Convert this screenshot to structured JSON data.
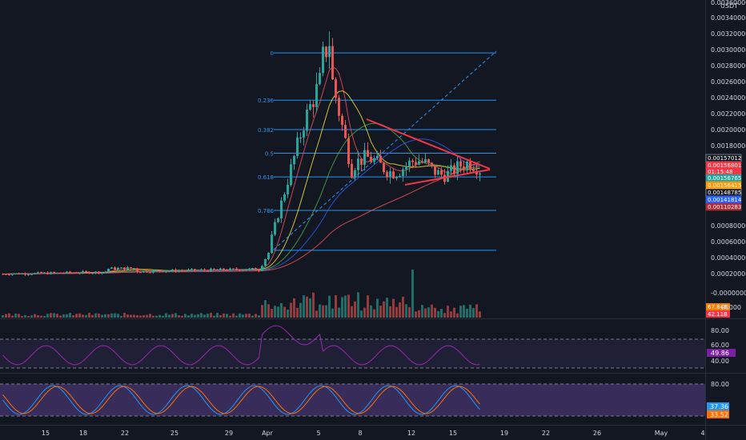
{
  "chart_data": [
    {
      "type": "candlestick",
      "currency_label": "USDT",
      "y_ticks": [
        "0.00360000",
        "0.00340000",
        "0.00320000",
        "0.00300000",
        "0.00280000",
        "0.00260000",
        "0.00240000",
        "0.00220000",
        "0.00200000",
        "0.00180000",
        "0.00080000",
        "0.00060000",
        "0.00040000",
        "0.00020000",
        "-0.00000000"
      ],
      "x_ticks": [
        "15",
        "18",
        "22",
        "25",
        "29",
        "Apr",
        "5",
        "8",
        "12",
        "15",
        "19",
        "22",
        "26",
        "May",
        "4"
      ],
      "fib_levels": [
        {
          "label": "0",
          "price": 0.00296
        },
        {
          "label": "0.236",
          "price": 0.00238
        },
        {
          "label": "0.382",
          "price": 0.00202
        },
        {
          "label": "0.5",
          "price": 0.00173
        },
        {
          "label": "0.618",
          "price": 0.00144
        },
        {
          "label": "0.786",
          "price": 0.00103
        },
        {
          "label": "",
          "price": 0.00054
        }
      ],
      "price_badges": [
        {
          "text": "0.00157012",
          "color": "#ffffff",
          "bg": "#131722"
        },
        {
          "text": "0.00156801",
          "color": "#ffffff",
          "bg": "#f23645"
        },
        {
          "text": "01:15:48",
          "color": "#ffffff",
          "bg": "#f23645"
        },
        {
          "text": "0.00156765",
          "color": "#ffffff",
          "bg": "#26a69a"
        },
        {
          "text": "0.00156415",
          "color": "#ffffff",
          "bg": "#ff9800"
        },
        {
          "text": "0.00148785",
          "color": "#ffffff",
          "bg": "#131722"
        },
        {
          "text": "0.00141814",
          "color": "#ffffff",
          "bg": "#2962ff"
        },
        {
          "text": "0.00110283",
          "color": "#ffffff",
          "bg": "#b22833"
        }
      ],
      "volume_badges": [
        {
          "text": "67.84B",
          "bg": "#f57c00"
        },
        {
          "text": "42.11B",
          "bg": "#f23645"
        }
      ],
      "volume_axis_tick": "00000"
    },
    {
      "type": "line",
      "name": "RSI",
      "y_ticks": [
        "80.00",
        "60.00",
        "40.00"
      ],
      "value_badge": "49.86",
      "band": [
        30,
        70
      ]
    },
    {
      "type": "line",
      "name": "Stochastic RSI",
      "y_ticks": [
        "80.00"
      ],
      "value_badges": [
        "37.36",
        "33.52"
      ],
      "band": [
        20,
        80
      ]
    }
  ],
  "colors": {
    "up": "#26a69a",
    "down": "#ef5350",
    "fib": "#2196f3",
    "triangle": "#f23645",
    "rsi": "#9c27b0"
  }
}
